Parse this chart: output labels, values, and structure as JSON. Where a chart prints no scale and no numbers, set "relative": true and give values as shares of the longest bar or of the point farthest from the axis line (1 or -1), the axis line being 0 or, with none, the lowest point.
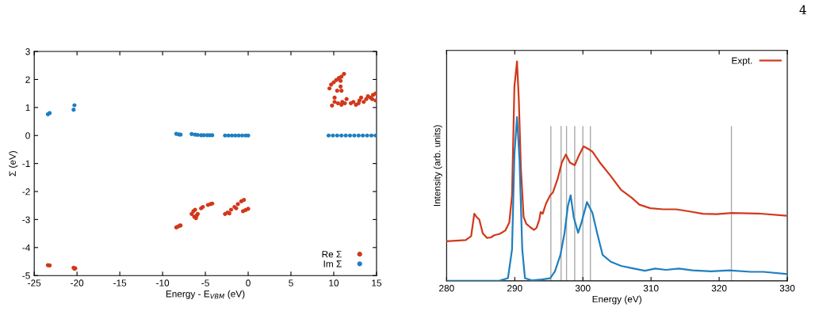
{
  "chart_data": [
    {
      "type": "scatter",
      "xlabel": "Energy - E$_{VBM}$ (eV)",
      "ylabel": "Σ (eV)",
      "xlim": [
        -25,
        15
      ],
      "ylim": [
        -5,
        3
      ],
      "xticks": [
        -25,
        -20,
        -15,
        -10,
        -5,
        0,
        5,
        10,
        15
      ],
      "yticks": [
        -5,
        -4,
        -3,
        -2,
        -1,
        0,
        1,
        2,
        3
      ],
      "grid": false,
      "legend": "bottom right",
      "marker": "circle",
      "series": [
        {
          "name": "Re Σ",
          "color": "#d1381b",
          "x": [
            -23.4,
            -23.2,
            -20.4,
            -20.3,
            -20.2,
            -8.4,
            -8.2,
            -8.0,
            -7.9,
            -6.6,
            -6.3,
            -6.1,
            -6.0,
            -5.9,
            -6.4,
            -6.2,
            -5.5,
            -5.3,
            -4.7,
            -4.4,
            -4.2,
            -2.7,
            -2.4,
            -2.0,
            -1.6,
            -1.2,
            -0.8,
            -0.5,
            -2.2,
            -1.4,
            -0.6,
            -0.3,
            0,
            9.5,
            9.7,
            10.0,
            10.3,
            10.6,
            10.9,
            11.2,
            10.8,
            9.8,
            10.1,
            10.4,
            10.8,
            10.9,
            10.1,
            10.5,
            10.9,
            11.3,
            11.5,
            12.0,
            12.3,
            12.6,
            13.0,
            13.2,
            13.5,
            13.8,
            14.0,
            14.3,
            14.6,
            14.9,
            14.9,
            14.5,
            12.9,
            11.0
          ],
          "values": [
            -4.63,
            -4.64,
            -4.72,
            -4.76,
            -4.74,
            -3.28,
            -3.25,
            -3.22,
            -3.21,
            -2.8,
            -2.9,
            -2.95,
            -2.85,
            -2.8,
            -2.7,
            -2.65,
            -2.6,
            -2.55,
            -2.48,
            -2.45,
            -2.43,
            -2.8,
            -2.75,
            -2.65,
            -2.55,
            -2.45,
            -2.35,
            -2.3,
            -2.78,
            -2.6,
            -2.7,
            -2.66,
            -2.62,
            1.68,
            1.82,
            1.9,
            1.98,
            2.05,
            2.1,
            2.2,
            1.95,
            1.07,
            1.35,
            1.6,
            1.75,
            1.6,
            1.2,
            1.15,
            1.1,
            1.15,
            1.3,
            1.15,
            1.2,
            1.1,
            1.25,
            1.35,
            1.2,
            1.3,
            1.4,
            1.35,
            1.45,
            1.5,
            1.25,
            1.3,
            1.15,
            1.2
          ]
        },
        {
          "name": "Im Σ",
          "color": "#1f7fc1",
          "x": [
            -23.4,
            -23.2,
            -20.3,
            -20.4,
            -8.4,
            -8.1,
            -7.9,
            -6.6,
            -6.2,
            -5.9,
            -5.5,
            -5.2,
            -4.8,
            -4.5,
            -4.2,
            -2.7,
            -2.3,
            -1.9,
            -1.5,
            -1.1,
            -0.7,
            -0.3,
            0,
            9.4,
            9.9,
            10.4,
            10.9,
            11.4,
            11.9,
            12.4,
            12.9,
            13.4,
            13.9,
            14.4,
            14.9
          ],
          "values": [
            0.76,
            0.8,
            1.08,
            0.92,
            0.06,
            0.04,
            0.03,
            0.05,
            0.03,
            0.02,
            0.01,
            0.01,
            0.01,
            0.01,
            0.01,
            0,
            0,
            0,
            0,
            0,
            0,
            0,
            0,
            0,
            0,
            0,
            0,
            0,
            0,
            0,
            0,
            0,
            0,
            0,
            0
          ]
        }
      ]
    },
    {
      "type": "line",
      "xlabel": "Energy (eV)",
      "ylabel": "Intensity (arb. units)",
      "relative": true,
      "xlim": [
        280,
        330
      ],
      "xticks": [
        280,
        290,
        300,
        310,
        320,
        330
      ],
      "grid": false,
      "legend": "top right",
      "line_style": "solid",
      "tick_labels": "x",
      "annotations": [
        "4"
      ],
      "ref_lines": [
        {
          "axis": "x",
          "value": 295.3,
          "color": "#aaaaaa"
        },
        {
          "axis": "x",
          "value": 296.8,
          "color": "#aaaaaa"
        },
        {
          "axis": "x",
          "value": 297.6,
          "color": "#aaaaaa"
        },
        {
          "axis": "x",
          "value": 298.8,
          "color": "#aaaaaa"
        },
        {
          "axis": "x",
          "value": 300.0,
          "color": "#aaaaaa"
        },
        {
          "axis": "x",
          "value": 301.1,
          "color": "#aaaaaa"
        },
        {
          "axis": "x",
          "value": 321.8,
          "color": "#aaaaaa"
        }
      ],
      "series": [
        {
          "name": "Expt.",
          "color": "#d1381b",
          "x": [
            280,
            282.8,
            283.6,
            284.06,
            284.4,
            284.8,
            285.3,
            285.9,
            286.5,
            287.0,
            287.8,
            288.6,
            289.2,
            289.6,
            289.95,
            290.33,
            290.6,
            290.9,
            291.3,
            291.7,
            292.3,
            292.85,
            293.2,
            293.6,
            293.8,
            294.1,
            294.6,
            295.2,
            295.6,
            296.3,
            296.9,
            297.5,
            298.1,
            298.8,
            299.4,
            300.1,
            300.8,
            301.4,
            302.5,
            304.1,
            305.6,
            307.2,
            308.3,
            309.9,
            311.8,
            313.7,
            315.7,
            317.6,
            319.6,
            321.9,
            325.7,
            329.8
          ],
          "values": [
            0.18,
            0.186,
            0.204,
            0.306,
            0.291,
            0.279,
            0.217,
            0.196,
            0.198,
            0.208,
            0.214,
            0.229,
            0.266,
            0.39,
            0.886,
            1.0,
            0.824,
            0.514,
            0.291,
            0.26,
            0.244,
            0.232,
            0.242,
            0.279,
            0.314,
            0.306,
            0.353,
            0.39,
            0.403,
            0.465,
            0.539,
            0.576,
            0.539,
            0.527,
            0.57,
            0.613,
            0.601,
            0.589,
            0.539,
            0.477,
            0.415,
            0.378,
            0.347,
            0.331,
            0.326,
            0.326,
            0.316,
            0.306,
            0.304,
            0.309,
            0.307,
            0.297
          ]
        },
        {
          "color": "#1f7fc1",
          "x": [
            280,
            287.8,
            289.0,
            289.6,
            289.95,
            290.33,
            290.7,
            291.1,
            291.5,
            292.5,
            294.0,
            295.2,
            295.9,
            296.7,
            297.3,
            297.8,
            298.2,
            298.65,
            299.3,
            299.8,
            300.6,
            301.4,
            302.1,
            302.9,
            304.1,
            305.6,
            307.2,
            309.1,
            310.6,
            312.2,
            314.1,
            316.1,
            318.8,
            321.5,
            324.6,
            326.5,
            330
          ],
          "values": [
            0,
            0.001,
            0.012,
            0.143,
            0.576,
            0.747,
            0.551,
            0.143,
            0.012,
            0.002,
            0.006,
            0.012,
            0.043,
            0.118,
            0.217,
            0.341,
            0.39,
            0.291,
            0.219,
            0.266,
            0.359,
            0.31,
            0.217,
            0.118,
            0.087,
            0.068,
            0.058,
            0.046,
            0.056,
            0.05,
            0.056,
            0.048,
            0.043,
            0.048,
            0.041,
            0.041,
            0.031
          ]
        }
      ]
    }
  ]
}
